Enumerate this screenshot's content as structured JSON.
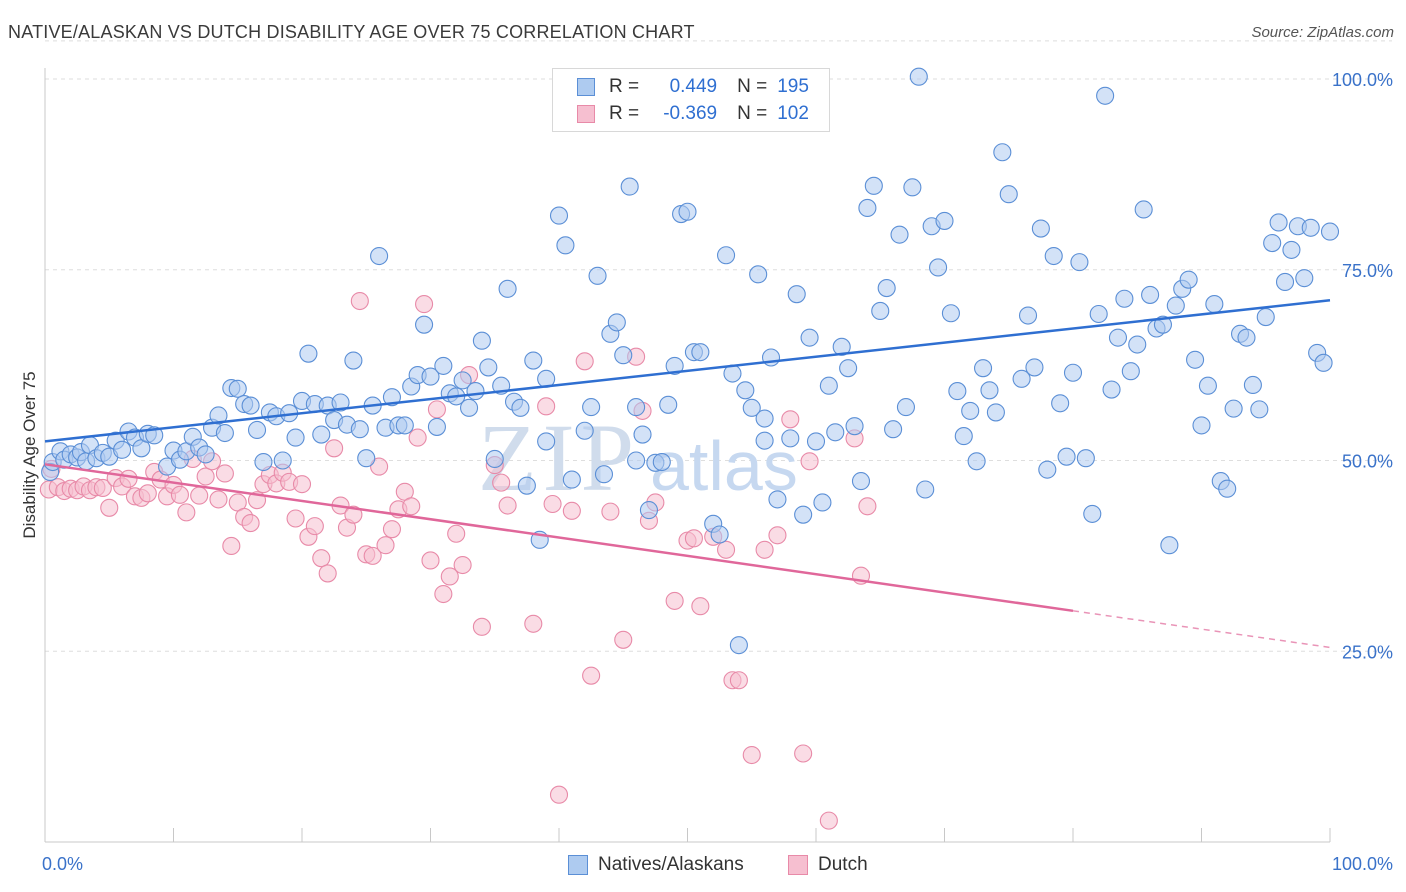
{
  "header": {
    "title": "NATIVE/ALASKAN VS DUTCH DISABILITY AGE OVER 75 CORRELATION CHART",
    "source": "Source: ZipAtlas.com"
  },
  "legend": {
    "series1": {
      "r_label": "R =",
      "r_value": "0.449",
      "n_label": "N =",
      "n_value": "195"
    },
    "series2": {
      "r_label": "R =",
      "r_value": "-0.369",
      "n_label": "N =",
      "n_value": "102"
    }
  },
  "bottom_legend": {
    "series1": "Natives/Alaskans",
    "series2": "Dutch"
  },
  "watermark": {
    "zip": "ZIP",
    "atlas": "atlas"
  },
  "colors": {
    "blue_fill": "#aecbf0",
    "blue_stroke": "#5b8fd6",
    "blue_line": "#2f6fd1",
    "pink_fill": "#f6bfd0",
    "pink_stroke": "#e88aa8",
    "pink_line": "#e0679a",
    "tick_text": "#3a72c9"
  },
  "chart_data": {
    "type": "scatter",
    "title": "NATIVE/ALASKAN VS DUTCH DISABILITY AGE OVER 75 CORRELATION CHART",
    "xlabel": "",
    "ylabel": "Disability Age Over 75",
    "xlim": [
      0,
      100
    ],
    "ylim": [
      0,
      105
    ],
    "x_tick_labels": [
      "0.0%",
      "100.0%"
    ],
    "y_ticks": [
      25,
      50,
      75,
      100
    ],
    "y_tick_labels": [
      "25.0%",
      "50.0%",
      "75.0%",
      "100.0%"
    ],
    "grid": true,
    "legend_position": "top-center",
    "series": [
      {
        "name": "Natives/Alaskans",
        "r": 0.449,
        "n": 195,
        "trend": {
          "x": [
            0,
            100
          ],
          "y": [
            52.5,
            71.0
          ],
          "dashed_after": null
        },
        "points": [
          [
            0.4,
            48.5
          ],
          [
            0.6,
            49.8
          ],
          [
            1.2,
            51.2
          ],
          [
            1.5,
            50.1
          ],
          [
            2.0,
            50.8
          ],
          [
            2.5,
            50.4
          ],
          [
            2.8,
            51.1
          ],
          [
            3.2,
            49.9
          ],
          [
            3.5,
            52.0
          ],
          [
            4.0,
            50.3
          ],
          [
            4.5,
            51.0
          ],
          [
            5.0,
            50.5
          ],
          [
            5.5,
            52.6
          ],
          [
            6.0,
            51.4
          ],
          [
            6.5,
            53.8
          ],
          [
            7.0,
            53.0
          ],
          [
            7.5,
            51.6
          ],
          [
            8.0,
            53.5
          ],
          [
            8.5,
            53.3
          ],
          [
            9.5,
            49.2
          ],
          [
            10.0,
            51.3
          ],
          [
            10.5,
            50.1
          ],
          [
            11.0,
            51.2
          ],
          [
            11.5,
            53.1
          ],
          [
            12.0,
            51.7
          ],
          [
            12.5,
            50.8
          ],
          [
            13.0,
            54.3
          ],
          [
            13.5,
            55.9
          ],
          [
            14.0,
            53.6
          ],
          [
            14.5,
            59.5
          ],
          [
            15.0,
            59.4
          ],
          [
            15.5,
            57.4
          ],
          [
            16.0,
            57.2
          ],
          [
            16.5,
            54.0
          ],
          [
            17.0,
            49.8
          ],
          [
            17.5,
            56.3
          ],
          [
            18.0,
            55.8
          ],
          [
            18.5,
            50.0
          ],
          [
            19.0,
            56.2
          ],
          [
            19.5,
            53.0
          ],
          [
            20.0,
            57.8
          ],
          [
            20.5,
            64.0
          ],
          [
            21.0,
            57.4
          ],
          [
            21.5,
            53.4
          ],
          [
            22.0,
            57.2
          ],
          [
            22.5,
            55.3
          ],
          [
            23.0,
            57.6
          ],
          [
            23.5,
            54.7
          ],
          [
            24.0,
            63.1
          ],
          [
            24.5,
            54.1
          ],
          [
            25.0,
            50.3
          ],
          [
            25.5,
            57.2
          ],
          [
            26.0,
            76.8
          ],
          [
            26.5,
            54.3
          ],
          [
            27.0,
            58.3
          ],
          [
            27.5,
            54.6
          ],
          [
            28.0,
            54.6
          ],
          [
            28.5,
            59.7
          ],
          [
            29.0,
            61.2
          ],
          [
            29.5,
            67.8
          ],
          [
            30.0,
            61.0
          ],
          [
            30.5,
            54.4
          ],
          [
            31.0,
            62.4
          ],
          [
            31.5,
            58.8
          ],
          [
            32.0,
            58.4
          ],
          [
            32.5,
            60.5
          ],
          [
            33.0,
            56.9
          ],
          [
            33.5,
            59.1
          ],
          [
            34.0,
            65.7
          ],
          [
            34.5,
            62.2
          ],
          [
            35.0,
            50.2
          ],
          [
            35.5,
            59.8
          ],
          [
            36.0,
            72.5
          ],
          [
            36.5,
            57.7
          ],
          [
            37.0,
            56.9
          ],
          [
            37.5,
            46.7
          ],
          [
            38.0,
            63.1
          ],
          [
            38.5,
            39.6
          ],
          [
            39.0,
            60.7
          ],
          [
            40.0,
            82.1
          ],
          [
            40.5,
            78.2
          ],
          [
            41.0,
            47.5
          ],
          [
            42.0,
            53.9
          ],
          [
            42.5,
            57.0
          ],
          [
            43.0,
            74.2
          ],
          [
            43.5,
            48.2
          ],
          [
            44.0,
            66.6
          ],
          [
            44.5,
            68.1
          ],
          [
            45.0,
            63.8
          ],
          [
            45.5,
            85.9
          ],
          [
            46.0,
            57.0
          ],
          [
            46.5,
            53.4
          ],
          [
            47.0,
            43.5
          ],
          [
            47.5,
            49.7
          ],
          [
            48.0,
            49.8
          ],
          [
            48.5,
            57.3
          ],
          [
            49.0,
            62.4
          ],
          [
            49.5,
            82.3
          ],
          [
            50.0,
            82.6
          ],
          [
            50.5,
            64.2
          ],
          [
            51.0,
            64.2
          ],
          [
            52.0,
            41.7
          ],
          [
            52.5,
            40.3
          ],
          [
            53.0,
            76.9
          ],
          [
            53.5,
            61.4
          ],
          [
            54.0,
            25.8
          ],
          [
            54.5,
            59.2
          ],
          [
            55.0,
            56.9
          ],
          [
            55.5,
            74.4
          ],
          [
            56.0,
            52.6
          ],
          [
            56.5,
            63.5
          ],
          [
            57.0,
            44.9
          ],
          [
            58.0,
            52.9
          ],
          [
            58.5,
            71.8
          ],
          [
            59.0,
            42.9
          ],
          [
            59.5,
            66.1
          ],
          [
            60.0,
            52.5
          ],
          [
            60.5,
            44.5
          ],
          [
            61.0,
            59.8
          ],
          [
            61.5,
            53.7
          ],
          [
            62.0,
            64.9
          ],
          [
            62.5,
            62.1
          ],
          [
            63.0,
            54.5
          ],
          [
            63.5,
            47.3
          ],
          [
            64.0,
            83.1
          ],
          [
            64.5,
            86.0
          ],
          [
            65.0,
            69.6
          ],
          [
            65.5,
            72.6
          ],
          [
            66.0,
            54.1
          ],
          [
            66.5,
            79.6
          ],
          [
            67.0,
            57.0
          ],
          [
            67.5,
            85.8
          ],
          [
            68.0,
            100.3
          ],
          [
            68.5,
            46.2
          ],
          [
            69.0,
            80.7
          ],
          [
            69.5,
            75.3
          ],
          [
            70.0,
            81.4
          ],
          [
            70.5,
            69.3
          ],
          [
            71.0,
            59.1
          ],
          [
            71.5,
            53.2
          ],
          [
            72.0,
            56.5
          ],
          [
            72.5,
            49.9
          ],
          [
            73.0,
            62.1
          ],
          [
            73.5,
            59.2
          ],
          [
            74.0,
            56.3
          ],
          [
            74.5,
            90.4
          ],
          [
            75.0,
            84.9
          ],
          [
            76.0,
            60.7
          ],
          [
            76.5,
            69.0
          ],
          [
            77.0,
            62.2
          ],
          [
            77.5,
            80.4
          ],
          [
            78.0,
            48.8
          ],
          [
            78.5,
            76.8
          ],
          [
            79.0,
            57.5
          ],
          [
            79.5,
            50.5
          ],
          [
            80.0,
            61.5
          ],
          [
            80.5,
            76.0
          ],
          [
            81.0,
            50.3
          ],
          [
            81.5,
            43.0
          ],
          [
            82.0,
            69.2
          ],
          [
            82.5,
            97.8
          ],
          [
            83.0,
            59.3
          ],
          [
            83.5,
            66.1
          ],
          [
            84.0,
            71.2
          ],
          [
            84.5,
            61.7
          ],
          [
            85.0,
            65.2
          ],
          [
            85.5,
            82.9
          ],
          [
            86.0,
            71.7
          ],
          [
            86.5,
            67.3
          ],
          [
            87.0,
            67.8
          ],
          [
            87.5,
            38.9
          ],
          [
            88.0,
            70.3
          ],
          [
            88.5,
            72.5
          ],
          [
            89.0,
            73.7
          ],
          [
            89.5,
            63.2
          ],
          [
            90.0,
            54.6
          ],
          [
            90.5,
            59.8
          ],
          [
            91.0,
            70.5
          ],
          [
            91.5,
            47.3
          ],
          [
            92.0,
            46.3
          ],
          [
            92.5,
            56.8
          ],
          [
            93.0,
            66.6
          ],
          [
            93.5,
            66.1
          ],
          [
            94.0,
            59.9
          ],
          [
            94.5,
            56.7
          ],
          [
            95.0,
            68.8
          ],
          [
            95.5,
            78.5
          ],
          [
            96.0,
            81.2
          ],
          [
            96.5,
            73.4
          ],
          [
            97.0,
            77.6
          ],
          [
            97.5,
            80.7
          ],
          [
            98.0,
            73.9
          ],
          [
            98.5,
            80.5
          ],
          [
            99.0,
            64.1
          ],
          [
            99.5,
            62.8
          ],
          [
            100.0,
            80.0
          ],
          [
            56.0,
            55.5
          ],
          [
            46.0,
            50.0
          ],
          [
            39.0,
            52.5
          ]
        ]
      },
      {
        "name": "Dutch",
        "r": -0.369,
        "n": 102,
        "trend": {
          "x": [
            0,
            80,
            100
          ],
          "y": [
            49.5,
            30.3,
            25.5
          ],
          "dashed_after": 80
        },
        "points": [
          [
            0.3,
            46.2
          ],
          [
            0.5,
            48.9
          ],
          [
            1.0,
            46.5
          ],
          [
            1.5,
            46.0
          ],
          [
            2.0,
            46.3
          ],
          [
            2.5,
            46.1
          ],
          [
            3.0,
            46.6
          ],
          [
            3.5,
            46.1
          ],
          [
            4.0,
            46.5
          ],
          [
            4.5,
            46.4
          ],
          [
            5.0,
            43.8
          ],
          [
            5.5,
            47.7
          ],
          [
            6.0,
            46.6
          ],
          [
            6.5,
            47.6
          ],
          [
            7.0,
            45.3
          ],
          [
            7.5,
            45.1
          ],
          [
            8.0,
            45.7
          ],
          [
            8.5,
            48.5
          ],
          [
            9.0,
            47.5
          ],
          [
            9.5,
            45.3
          ],
          [
            10.0,
            46.8
          ],
          [
            10.5,
            45.5
          ],
          [
            11.0,
            43.2
          ],
          [
            11.5,
            50.2
          ],
          [
            12.0,
            45.4
          ],
          [
            12.5,
            47.9
          ],
          [
            13.0,
            49.9
          ],
          [
            13.5,
            44.9
          ],
          [
            14.0,
            48.3
          ],
          [
            14.5,
            38.8
          ],
          [
            15.0,
            44.5
          ],
          [
            15.5,
            42.6
          ],
          [
            16.0,
            41.8
          ],
          [
            16.5,
            44.8
          ],
          [
            17.0,
            46.9
          ],
          [
            17.5,
            48.1
          ],
          [
            18.0,
            47.0
          ],
          [
            18.5,
            48.4
          ],
          [
            19.0,
            47.2
          ],
          [
            19.5,
            42.4
          ],
          [
            20.0,
            46.9
          ],
          [
            20.5,
            40.0
          ],
          [
            21.0,
            41.4
          ],
          [
            21.5,
            37.2
          ],
          [
            22.0,
            35.2
          ],
          [
            22.5,
            51.6
          ],
          [
            23.0,
            44.1
          ],
          [
            23.5,
            41.2
          ],
          [
            24.0,
            42.9
          ],
          [
            24.5,
            70.9
          ],
          [
            25.0,
            37.7
          ],
          [
            25.5,
            37.5
          ],
          [
            26.0,
            49.2
          ],
          [
            26.5,
            38.9
          ],
          [
            27.0,
            41.0
          ],
          [
            27.5,
            43.6
          ],
          [
            28.0,
            45.9
          ],
          [
            28.5,
            44.0
          ],
          [
            29.0,
            53.0
          ],
          [
            29.5,
            70.5
          ],
          [
            30.0,
            36.9
          ],
          [
            30.5,
            56.7
          ],
          [
            31.0,
            32.5
          ],
          [
            31.5,
            34.8
          ],
          [
            32.0,
            40.4
          ],
          [
            32.5,
            36.3
          ],
          [
            33.0,
            61.2
          ],
          [
            34.0,
            28.2
          ],
          [
            35.0,
            49.4
          ],
          [
            35.5,
            47.1
          ],
          [
            36.0,
            44.1
          ],
          [
            38.0,
            28.6
          ],
          [
            39.0,
            57.1
          ],
          [
            39.5,
            44.3
          ],
          [
            40.0,
            6.2
          ],
          [
            41.0,
            43.4
          ],
          [
            42.0,
            63.0
          ],
          [
            42.5,
            21.8
          ],
          [
            45.0,
            26.5
          ],
          [
            46.0,
            63.6
          ],
          [
            47.0,
            42.1
          ],
          [
            47.5,
            44.5
          ],
          [
            49.0,
            31.6
          ],
          [
            50.0,
            39.5
          ],
          [
            50.5,
            39.8
          ],
          [
            51.0,
            30.9
          ],
          [
            52.0,
            40.0
          ],
          [
            53.0,
            38.3
          ],
          [
            53.5,
            21.2
          ],
          [
            54.0,
            21.2
          ],
          [
            55.0,
            11.4
          ],
          [
            56.0,
            38.3
          ],
          [
            57.0,
            40.2
          ],
          [
            58.0,
            55.4
          ],
          [
            59.0,
            11.6
          ],
          [
            59.5,
            49.9
          ],
          [
            61.0,
            2.8
          ],
          [
            63.0,
            52.9
          ],
          [
            63.5,
            34.9
          ],
          [
            64.0,
            44.0
          ],
          [
            46.5,
            56.5
          ],
          [
            44.0,
            43.3
          ]
        ]
      }
    ]
  }
}
